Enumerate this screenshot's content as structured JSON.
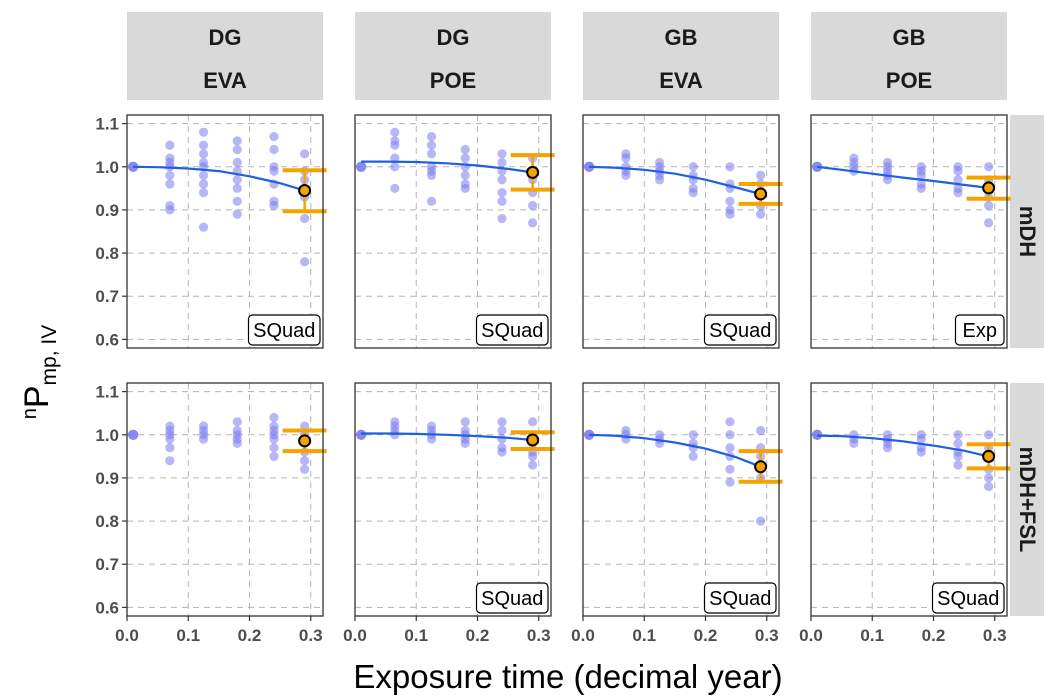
{
  "chart_data": {
    "type": "scatter",
    "y_axis_title": {
      "base": "P",
      "superscript": "n",
      "subscript": "mp, IV"
    },
    "x_axis_title": "Exposure time (decimal year)",
    "x_ticks": [
      "0.0",
      "0.1",
      "0.2",
      "0.3"
    ],
    "y_ticks": [
      "0.6",
      "0.7",
      "0.8",
      "0.9",
      "1.0",
      "1.1"
    ],
    "xlim": [
      0.0,
      0.32
    ],
    "ylim": [
      0.58,
      1.12
    ],
    "columns": [
      {
        "line1": "DG",
        "line2": "EVA"
      },
      {
        "line1": "DG",
        "line2": "POE"
      },
      {
        "line1": "GB",
        "line2": "EVA"
      },
      {
        "line1": "GB",
        "line2": "POE"
      }
    ],
    "rows": [
      "mDH",
      "mDH+FSL"
    ],
    "colors": {
      "points": "#7b7bf0",
      "fit_line": "#1f5fe0",
      "error_bar": "#f5a300",
      "strip": "#d9d9d9",
      "grid": "#b3b3b3"
    },
    "panels": [
      {
        "row": 0,
        "col": 0,
        "model": "SQuad",
        "first": [
          0.01,
          1.0
        ],
        "points": [
          [
            0.07,
            1.05
          ],
          [
            0.07,
            1.02
          ],
          [
            0.07,
            1.01
          ],
          [
            0.07,
            1.0
          ],
          [
            0.07,
            0.98
          ],
          [
            0.07,
            0.96
          ],
          [
            0.07,
            0.91
          ],
          [
            0.07,
            0.9
          ],
          [
            0.125,
            1.08
          ],
          [
            0.125,
            1.05
          ],
          [
            0.125,
            1.03
          ],
          [
            0.125,
            1.01
          ],
          [
            0.125,
            1.0
          ],
          [
            0.125,
            0.98
          ],
          [
            0.125,
            0.96
          ],
          [
            0.125,
            0.94
          ],
          [
            0.125,
            0.86
          ],
          [
            0.18,
            1.06
          ],
          [
            0.18,
            1.04
          ],
          [
            0.18,
            1.01
          ],
          [
            0.18,
            0.99
          ],
          [
            0.18,
            0.97
          ],
          [
            0.18,
            0.95
          ],
          [
            0.18,
            0.92
          ],
          [
            0.18,
            0.89
          ],
          [
            0.24,
            1.07
          ],
          [
            0.24,
            1.04
          ],
          [
            0.24,
            1.0
          ],
          [
            0.24,
            0.99
          ],
          [
            0.24,
            0.96
          ],
          [
            0.24,
            0.92
          ],
          [
            0.24,
            0.91
          ],
          [
            0.29,
            1.03
          ],
          [
            0.29,
            0.99
          ],
          [
            0.29,
            0.97
          ],
          [
            0.29,
            0.95
          ],
          [
            0.29,
            0.93
          ],
          [
            0.29,
            0.88
          ],
          [
            0.29,
            0.78
          ]
        ],
        "fit": [
          [
            0.01,
            1.0
          ],
          [
            0.05,
            0.999
          ],
          [
            0.1,
            0.996
          ],
          [
            0.15,
            0.99
          ],
          [
            0.2,
            0.978
          ],
          [
            0.25,
            0.962
          ],
          [
            0.29,
            0.945
          ]
        ],
        "mean": [
          0.29,
          0.945
        ],
        "error": [
          0.897,
          0.992
        ]
      },
      {
        "row": 0,
        "col": 1,
        "model": "SQuad",
        "first": [
          0.01,
          1.0
        ],
        "points": [
          [
            0.065,
            1.08
          ],
          [
            0.065,
            1.06
          ],
          [
            0.065,
            1.05
          ],
          [
            0.065,
            1.02
          ],
          [
            0.065,
            1.0
          ],
          [
            0.065,
            0.95
          ],
          [
            0.125,
            1.07
          ],
          [
            0.125,
            1.05
          ],
          [
            0.125,
            1.03
          ],
          [
            0.125,
            1.0
          ],
          [
            0.125,
            0.99
          ],
          [
            0.125,
            0.98
          ],
          [
            0.125,
            0.92
          ],
          [
            0.18,
            1.04
          ],
          [
            0.18,
            1.02
          ],
          [
            0.18,
            1.0
          ],
          [
            0.18,
            0.98
          ],
          [
            0.18,
            0.96
          ],
          [
            0.18,
            0.95
          ],
          [
            0.24,
            1.03
          ],
          [
            0.24,
            1.01
          ],
          [
            0.24,
            0.99
          ],
          [
            0.24,
            0.97
          ],
          [
            0.24,
            0.94
          ],
          [
            0.24,
            0.92
          ],
          [
            0.24,
            0.88
          ],
          [
            0.29,
            1.02
          ],
          [
            0.29,
            0.99
          ],
          [
            0.29,
            0.97
          ],
          [
            0.29,
            0.94
          ],
          [
            0.29,
            0.91
          ],
          [
            0.29,
            0.87
          ]
        ],
        "fit": [
          [
            0.01,
            1.012
          ],
          [
            0.05,
            1.012
          ],
          [
            0.1,
            1.011
          ],
          [
            0.15,
            1.008
          ],
          [
            0.2,
            1.003
          ],
          [
            0.25,
            0.995
          ],
          [
            0.29,
            0.987
          ]
        ],
        "mean": [
          0.29,
          0.987
        ],
        "error": [
          0.947,
          1.027
        ]
      },
      {
        "row": 0,
        "col": 2,
        "model": "SQuad",
        "first": [
          0.01,
          1.0
        ],
        "points": [
          [
            0.07,
            1.03
          ],
          [
            0.07,
            1.02
          ],
          [
            0.07,
            1.0
          ],
          [
            0.07,
            0.99
          ],
          [
            0.07,
            0.98
          ],
          [
            0.125,
            1.01
          ],
          [
            0.125,
            1.0
          ],
          [
            0.125,
            0.99
          ],
          [
            0.125,
            0.98
          ],
          [
            0.125,
            0.97
          ],
          [
            0.18,
            1.0
          ],
          [
            0.18,
            0.98
          ],
          [
            0.18,
            0.97
          ],
          [
            0.18,
            0.95
          ],
          [
            0.18,
            0.94
          ],
          [
            0.24,
            1.0
          ],
          [
            0.24,
            0.96
          ],
          [
            0.24,
            0.95
          ],
          [
            0.24,
            0.92
          ],
          [
            0.24,
            0.9
          ],
          [
            0.24,
            0.89
          ],
          [
            0.29,
            0.98
          ],
          [
            0.29,
            0.96
          ],
          [
            0.29,
            0.94
          ],
          [
            0.29,
            0.91
          ],
          [
            0.29,
            0.89
          ]
        ],
        "fit": [
          [
            0.01,
            1.0
          ],
          [
            0.05,
            0.998
          ],
          [
            0.1,
            0.993
          ],
          [
            0.15,
            0.984
          ],
          [
            0.2,
            0.97
          ],
          [
            0.25,
            0.952
          ],
          [
            0.29,
            0.937
          ]
        ],
        "mean": [
          0.29,
          0.937
        ],
        "error": [
          0.914,
          0.96
        ]
      },
      {
        "row": 0,
        "col": 3,
        "model": "Exp",
        "first": [
          0.01,
          1.0
        ],
        "points": [
          [
            0.07,
            1.02
          ],
          [
            0.07,
            1.01
          ],
          [
            0.07,
            1.0
          ],
          [
            0.07,
            0.99
          ],
          [
            0.125,
            1.01
          ],
          [
            0.125,
            1.0
          ],
          [
            0.125,
            0.99
          ],
          [
            0.125,
            0.98
          ],
          [
            0.125,
            0.97
          ],
          [
            0.18,
            1.0
          ],
          [
            0.18,
            0.99
          ],
          [
            0.18,
            0.98
          ],
          [
            0.18,
            0.96
          ],
          [
            0.18,
            0.95
          ],
          [
            0.24,
            1.0
          ],
          [
            0.24,
            0.99
          ],
          [
            0.24,
            0.97
          ],
          [
            0.24,
            0.95
          ],
          [
            0.24,
            0.94
          ],
          [
            0.29,
            1.0
          ],
          [
            0.29,
            0.97
          ],
          [
            0.29,
            0.95
          ],
          [
            0.29,
            0.93
          ],
          [
            0.29,
            0.91
          ],
          [
            0.29,
            0.87
          ]
        ],
        "fit": [
          [
            0.01,
            1.0
          ],
          [
            0.05,
            0.993
          ],
          [
            0.1,
            0.984
          ],
          [
            0.15,
            0.975
          ],
          [
            0.2,
            0.967
          ],
          [
            0.25,
            0.958
          ],
          [
            0.29,
            0.951
          ]
        ],
        "mean": [
          0.29,
          0.951
        ],
        "error": [
          0.926,
          0.975
        ]
      },
      {
        "row": 1,
        "col": 0,
        "model": "",
        "first": [
          0.01,
          1.0
        ],
        "points": [
          [
            0.07,
            1.02
          ],
          [
            0.07,
            1.01
          ],
          [
            0.07,
            1.0
          ],
          [
            0.07,
            0.99
          ],
          [
            0.07,
            0.97
          ],
          [
            0.07,
            0.94
          ],
          [
            0.125,
            1.02
          ],
          [
            0.125,
            1.01
          ],
          [
            0.125,
            1.0
          ],
          [
            0.125,
            0.99
          ],
          [
            0.18,
            1.03
          ],
          [
            0.18,
            1.01
          ],
          [
            0.18,
            1.0
          ],
          [
            0.18,
            0.99
          ],
          [
            0.18,
            0.98
          ],
          [
            0.24,
            1.04
          ],
          [
            0.24,
            1.02
          ],
          [
            0.24,
            1.01
          ],
          [
            0.24,
            1.0
          ],
          [
            0.24,
            0.99
          ],
          [
            0.24,
            0.97
          ],
          [
            0.24,
            0.95
          ],
          [
            0.29,
            1.02
          ],
          [
            0.29,
            1.0
          ],
          [
            0.29,
            0.98
          ],
          [
            0.29,
            0.96
          ],
          [
            0.29,
            0.94
          ],
          [
            0.29,
            0.92
          ]
        ],
        "fit": [],
        "mean": [
          0.29,
          0.986
        ],
        "error": [
          0.962,
          1.01
        ]
      },
      {
        "row": 1,
        "col": 1,
        "model": "SQuad",
        "first": [
          0.01,
          1.0
        ],
        "points": [
          [
            0.065,
            1.03
          ],
          [
            0.065,
            1.02
          ],
          [
            0.065,
            1.01
          ],
          [
            0.065,
            1.0
          ],
          [
            0.125,
            1.02
          ],
          [
            0.125,
            1.01
          ],
          [
            0.125,
            1.0
          ],
          [
            0.125,
            0.99
          ],
          [
            0.18,
            1.03
          ],
          [
            0.18,
            1.01
          ],
          [
            0.18,
            1.0
          ],
          [
            0.18,
            0.99
          ],
          [
            0.18,
            0.98
          ],
          [
            0.24,
            1.03
          ],
          [
            0.24,
            1.01
          ],
          [
            0.24,
            0.99
          ],
          [
            0.24,
            0.97
          ],
          [
            0.24,
            0.96
          ],
          [
            0.29,
            1.03
          ],
          [
            0.29,
            1.0
          ],
          [
            0.29,
            0.98
          ],
          [
            0.29,
            0.96
          ],
          [
            0.29,
            0.95
          ],
          [
            0.29,
            0.93
          ]
        ],
        "fit": [
          [
            0.01,
            1.003
          ],
          [
            0.05,
            1.003
          ],
          [
            0.1,
            1.002
          ],
          [
            0.15,
            1.0
          ],
          [
            0.2,
            0.997
          ],
          [
            0.25,
            0.993
          ],
          [
            0.29,
            0.988
          ]
        ],
        "mean": [
          0.29,
          0.988
        ],
        "error": [
          0.967,
          1.006
        ]
      },
      {
        "row": 1,
        "col": 2,
        "model": "SQuad",
        "first": [
          0.01,
          1.0
        ],
        "points": [
          [
            0.07,
            1.01
          ],
          [
            0.07,
            1.0
          ],
          [
            0.07,
            0.99
          ],
          [
            0.125,
            1.0
          ],
          [
            0.125,
            0.99
          ],
          [
            0.125,
            0.98
          ],
          [
            0.18,
            1.0
          ],
          [
            0.18,
            0.98
          ],
          [
            0.18,
            0.97
          ],
          [
            0.18,
            0.95
          ],
          [
            0.24,
            1.03
          ],
          [
            0.24,
            1.0
          ],
          [
            0.24,
            0.97
          ],
          [
            0.24,
            0.95
          ],
          [
            0.24,
            0.92
          ],
          [
            0.24,
            0.89
          ],
          [
            0.29,
            1.01
          ],
          [
            0.29,
            0.97
          ],
          [
            0.29,
            0.95
          ],
          [
            0.29,
            0.92
          ],
          [
            0.29,
            0.9
          ],
          [
            0.29,
            0.8
          ]
        ],
        "fit": [
          [
            0.01,
            1.0
          ],
          [
            0.05,
            0.998
          ],
          [
            0.1,
            0.992
          ],
          [
            0.15,
            0.982
          ],
          [
            0.2,
            0.968
          ],
          [
            0.25,
            0.948
          ],
          [
            0.29,
            0.926
          ]
        ],
        "mean": [
          0.29,
          0.926
        ],
        "error": [
          0.891,
          0.962
        ]
      },
      {
        "row": 1,
        "col": 3,
        "model": "SQuad",
        "first": [
          0.01,
          1.0
        ],
        "points": [
          [
            0.07,
            1.0
          ],
          [
            0.07,
            0.99
          ],
          [
            0.07,
            0.98
          ],
          [
            0.125,
            1.0
          ],
          [
            0.125,
            0.99
          ],
          [
            0.125,
            0.98
          ],
          [
            0.125,
            0.97
          ],
          [
            0.18,
            1.0
          ],
          [
            0.18,
            0.99
          ],
          [
            0.18,
            0.97
          ],
          [
            0.18,
            0.96
          ],
          [
            0.24,
            1.0
          ],
          [
            0.24,
            0.98
          ],
          [
            0.24,
            0.96
          ],
          [
            0.24,
            0.95
          ],
          [
            0.24,
            0.93
          ],
          [
            0.29,
            1.0
          ],
          [
            0.29,
            0.97
          ],
          [
            0.29,
            0.95
          ],
          [
            0.29,
            0.92
          ],
          [
            0.29,
            0.9
          ],
          [
            0.29,
            0.88
          ]
        ],
        "fit": [
          [
            0.01,
            0.998
          ],
          [
            0.05,
            0.997
          ],
          [
            0.1,
            0.992
          ],
          [
            0.15,
            0.985
          ],
          [
            0.2,
            0.975
          ],
          [
            0.25,
            0.963
          ],
          [
            0.29,
            0.95
          ]
        ],
        "mean": [
          0.29,
          0.95
        ],
        "error": [
          0.922,
          0.978
        ]
      }
    ]
  }
}
